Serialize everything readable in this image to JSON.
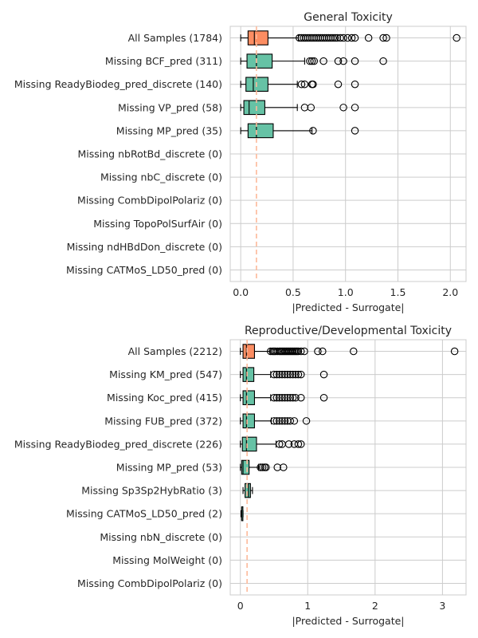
{
  "colors": {
    "all_samples": "#fc8d62",
    "missing": "#66c2a5",
    "reference_line": "#fdb99a"
  },
  "chart_data": [
    {
      "type": "boxplot",
      "orientation": "horizontal",
      "title": "General Toxicity",
      "xlabel": "|Predicted - Surrogate|",
      "xlim": [
        -0.1,
        2.15
      ],
      "xticks": [
        0.0,
        0.5,
        1.0,
        1.5,
        2.0
      ],
      "xtick_labels": [
        "0.0",
        "0.5",
        "1.0",
        "1.5",
        "2.0"
      ],
      "reference_line_x": 0.15,
      "grid": true,
      "categories": [
        "All Samples (1784)",
        "Missing BCF_pred (311)",
        "Missing ReadyBiodeg_pred_discrete (140)",
        "Missing VP_pred (58)",
        "Missing MP_pred (35)",
        "Missing nbRotBd_discrete (0)",
        "Missing nbC_discrete (0)",
        "Missing CombDipolPolariz (0)",
        "Missing TopoPolSurfAir (0)",
        "Missing ndHBdDon_discrete (0)",
        "Missing CATMoS_LD50_pred (0)"
      ],
      "boxes": [
        {
          "whislo": 0.0,
          "q1": 0.07,
          "med": 0.13,
          "q3": 0.26,
          "whishi": 0.55,
          "fliers": [
            0.56,
            0.58,
            0.6,
            0.62,
            0.64,
            0.66,
            0.68,
            0.7,
            0.72,
            0.74,
            0.76,
            0.78,
            0.8,
            0.82,
            0.84,
            0.86,
            0.88,
            0.9,
            0.92,
            0.95,
            0.98,
            1.02,
            1.06,
            1.09,
            1.22,
            1.36,
            1.39,
            2.06
          ],
          "group": "all"
        },
        {
          "whislo": 0.0,
          "q1": 0.06,
          "med": 0.15,
          "q3": 0.3,
          "whishi": 0.61,
          "fliers": [
            0.66,
            0.68,
            0.7,
            0.79,
            0.93,
            0.98,
            1.09,
            1.36
          ],
          "group": "missing"
        },
        {
          "whislo": 0.0,
          "q1": 0.05,
          "med": 0.12,
          "q3": 0.26,
          "whishi": 0.54,
          "fliers": [
            0.58,
            0.61,
            0.68,
            0.69,
            0.93,
            1.09
          ],
          "group": "missing"
        },
        {
          "whislo": 0.0,
          "q1": 0.03,
          "med": 0.08,
          "q3": 0.23,
          "whishi": 0.54,
          "fliers": [
            0.61,
            0.67,
            0.98,
            1.09
          ],
          "group": "missing"
        },
        {
          "whislo": 0.0,
          "q1": 0.07,
          "med": 0.15,
          "q3": 0.31,
          "whishi": 0.68,
          "fliers": [
            0.69,
            1.09
          ],
          "group": "missing"
        },
        null,
        null,
        null,
        null,
        null,
        null
      ]
    },
    {
      "type": "boxplot",
      "orientation": "horizontal",
      "title": "Reproductive/Developmental Toxicity",
      "xlabel": "|Predicted - Surrogate|",
      "xlim": [
        -0.15,
        3.35
      ],
      "xticks": [
        0,
        1,
        2,
        3
      ],
      "xtick_labels": [
        "0",
        "1",
        "2",
        "3"
      ],
      "reference_line_x": 0.1,
      "grid": true,
      "categories": [
        "All Samples (2212)",
        "Missing KM_pred (547)",
        "Missing Koc_pred (415)",
        "Missing FUB_pred (372)",
        "Missing ReadyBiodeg_pred_discrete (226)",
        "Missing MP_pred (53)",
        "Missing Sp3Sp2HybRatio (3)",
        "Missing CATMoS_LD50_pred (2)",
        "Missing nbN_discrete (0)",
        "Missing MolWeight (0)",
        "Missing CombDipolPolariz (0)"
      ],
      "boxes": [
        {
          "whislo": 0.0,
          "q1": 0.04,
          "med": 0.09,
          "q3": 0.21,
          "whishi": 0.44,
          "fliers": [
            0.45,
            0.48,
            0.5,
            0.52,
            0.55,
            0.58,
            0.6,
            0.62,
            0.64,
            0.66,
            0.68,
            0.7,
            0.72,
            0.74,
            0.76,
            0.78,
            0.8,
            0.82,
            0.84,
            0.86,
            0.9,
            0.95,
            1.15,
            1.22,
            1.68,
            3.18
          ],
          "group": "all"
        },
        {
          "whislo": 0.0,
          "q1": 0.04,
          "med": 0.09,
          "q3": 0.2,
          "whishi": 0.45,
          "fliers": [
            0.5,
            0.54,
            0.58,
            0.62,
            0.66,
            0.7,
            0.74,
            0.78,
            0.82,
            0.86,
            0.9,
            1.24
          ],
          "group": "missing"
        },
        {
          "whislo": 0.0,
          "q1": 0.04,
          "med": 0.09,
          "q3": 0.21,
          "whishi": 0.45,
          "fliers": [
            0.5,
            0.54,
            0.58,
            0.62,
            0.66,
            0.7,
            0.74,
            0.78,
            0.82,
            0.9,
            1.24
          ],
          "group": "missing"
        },
        {
          "whislo": 0.0,
          "q1": 0.04,
          "med": 0.09,
          "q3": 0.21,
          "whishi": 0.46,
          "fliers": [
            0.5,
            0.54,
            0.58,
            0.62,
            0.66,
            0.7,
            0.74,
            0.8,
            0.98
          ],
          "group": "missing"
        },
        {
          "whislo": 0.0,
          "q1": 0.03,
          "med": 0.09,
          "q3": 0.24,
          "whishi": 0.53,
          "fliers": [
            0.58,
            0.62,
            0.72,
            0.8,
            0.86,
            0.9
          ],
          "group": "missing"
        },
        {
          "whislo": 0.0,
          "q1": 0.02,
          "med": 0.04,
          "q3": 0.13,
          "whishi": 0.27,
          "fliers": [
            0.3,
            0.33,
            0.36,
            0.38,
            0.55,
            0.64
          ],
          "group": "missing"
        },
        {
          "whislo": 0.04,
          "q1": 0.07,
          "med": 0.12,
          "q3": 0.15,
          "whishi": 0.18,
          "fliers": [],
          "group": "missing"
        },
        {
          "whislo": 0.01,
          "q1": 0.02,
          "med": 0.02,
          "q3": 0.03,
          "whishi": 0.04,
          "fliers": [],
          "group": "missing"
        },
        null,
        null,
        null
      ]
    }
  ]
}
